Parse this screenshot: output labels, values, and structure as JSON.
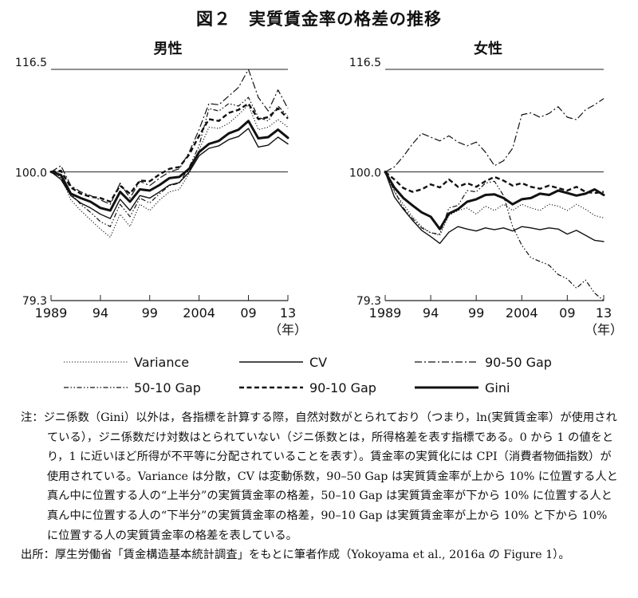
{
  "figure_title": "図２　実質賃金率の格差の推移",
  "year_unit": "（年）",
  "x_tick_labels": [
    "1989",
    "94",
    "99",
    "2004",
    "09",
    "13"
  ],
  "y_tick_labels": [
    "116.5",
    "100.0",
    "79.3"
  ],
  "legend": [
    {
      "label": "Variance",
      "style": "dotted"
    },
    {
      "label": "CV",
      "style": "solid"
    },
    {
      "label": "90-50 Gap",
      "style": "dashdot"
    },
    {
      "label": "50-10 Gap",
      "style": "dashdotdot"
    },
    {
      "label": "90-10 Gap",
      "style": "dashed"
    },
    {
      "label": "Gini",
      "style": "thick"
    }
  ],
  "chart_data": [
    {
      "type": "line",
      "title": "男性",
      "x": [
        1989,
        1990,
        1991,
        1992,
        1993,
        1994,
        1995,
        1996,
        1997,
        1998,
        1999,
        2000,
        2001,
        2002,
        2003,
        2004,
        2005,
        2006,
        2007,
        2008,
        2009,
        2010,
        2011,
        2012,
        2013
      ],
      "xlim": [
        1989,
        2013
      ],
      "ylim": [
        79.3,
        116.5
      ],
      "xticks": [
        1989,
        1994,
        1999,
        2004,
        2009,
        2013
      ],
      "yticks": [
        79.3,
        100.0,
        116.5
      ],
      "series": [
        {
          "name": "Variance",
          "values": [
            100.0,
            99.2,
            95.5,
            93.8,
            92.3,
            90.8,
            89.5,
            93.2,
            91.2,
            94.8,
            93.8,
            95.5,
            96.8,
            97.2,
            99.8,
            103.5,
            107.2,
            107.0,
            107.8,
            109.2,
            110.8,
            106.8,
            107.2,
            108.4,
            107.2
          ]
        },
        {
          "name": "CV",
          "values": [
            100.0,
            98.8,
            96.2,
            95.0,
            94.2,
            93.2,
            92.5,
            95.6,
            93.8,
            96.2,
            95.8,
            96.8,
            97.9,
            98.3,
            100.0,
            102.6,
            103.8,
            104.2,
            105.2,
            105.7,
            107.0,
            104.0,
            104.3,
            105.6,
            104.5
          ]
        },
        {
          "name": "90-50 Gap",
          "values": [
            100.0,
            101.0,
            97.8,
            96.8,
            96.2,
            95.5,
            94.8,
            98.2,
            95.8,
            98.5,
            97.8,
            99.0,
            100.0,
            100.5,
            103.2,
            106.8,
            111.0,
            110.8,
            112.2,
            113.6,
            116.5,
            112.0,
            109.8,
            113.2,
            110.2
          ]
        },
        {
          "name": "50-10 Gap",
          "values": [
            100.0,
            99.0,
            96.5,
            94.8,
            93.5,
            92.0,
            91.2,
            94.8,
            92.8,
            95.8,
            95.0,
            96.5,
            97.8,
            98.2,
            100.8,
            104.2,
            110.2,
            109.8,
            111.0,
            110.6,
            112.0,
            108.8,
            108.2,
            110.6,
            109.0
          ]
        },
        {
          "name": "90-10 Gap",
          "values": [
            100.0,
            100.2,
            97.5,
            96.5,
            96.0,
            95.8,
            95.2,
            97.8,
            96.5,
            98.6,
            98.5,
            99.6,
            100.5,
            100.8,
            102.8,
            105.8,
            108.5,
            108.2,
            109.5,
            110.0,
            111.0,
            108.5,
            108.8,
            110.2,
            108.6
          ]
        },
        {
          "name": "Gini",
          "values": [
            100.0,
            99.5,
            96.5,
            95.8,
            95.2,
            94.2,
            93.8,
            96.8,
            95.2,
            97.2,
            97.0,
            97.9,
            99.0,
            99.2,
            100.5,
            103.2,
            104.5,
            105.0,
            106.2,
            106.8,
            108.2,
            105.4,
            105.6,
            106.8,
            105.5
          ]
        }
      ]
    },
    {
      "type": "line",
      "title": "女性",
      "x": [
        1989,
        1990,
        1991,
        1992,
        1993,
        1994,
        1995,
        1996,
        1997,
        1998,
        1999,
        2000,
        2001,
        2002,
        2003,
        2004,
        2005,
        2006,
        2007,
        2008,
        2009,
        2010,
        2011,
        2012,
        2013
      ],
      "xlim": [
        1989,
        2013
      ],
      "ylim": [
        79.3,
        116.5
      ],
      "xticks": [
        1989,
        1994,
        1999,
        2004,
        2009,
        2013
      ],
      "yticks": [
        79.3,
        100.0,
        116.5
      ],
      "series": [
        {
          "name": "Variance",
          "values": [
            100.0,
            96.8,
            94.8,
            92.8,
            91.2,
            90.2,
            89.8,
            93.0,
            93.8,
            94.2,
            93.2,
            94.5,
            93.8,
            94.8,
            93.8,
            94.8,
            94.2,
            93.8,
            94.8,
            94.5,
            93.8,
            94.8,
            94.0,
            93.0,
            92.6
          ]
        },
        {
          "name": "CV",
          "values": [
            100.0,
            96.0,
            94.0,
            92.2,
            90.6,
            89.6,
            88.5,
            90.3,
            91.2,
            90.8,
            90.5,
            91.0,
            90.7,
            91.0,
            90.5,
            91.2,
            91.0,
            90.7,
            91.0,
            90.8,
            90.0,
            90.6,
            89.8,
            89.0,
            88.8
          ]
        },
        {
          "name": "90-50 Gap",
          "values": [
            100.0,
            100.8,
            102.5,
            104.5,
            106.2,
            105.6,
            105.0,
            105.8,
            104.8,
            104.2,
            104.8,
            103.2,
            101.0,
            101.8,
            103.8,
            109.2,
            109.5,
            108.8,
            109.4,
            110.5,
            108.8,
            108.4,
            110.0,
            110.8,
            111.8
          ]
        },
        {
          "name": "50-10 Gap",
          "values": [
            100.0,
            97.0,
            94.2,
            92.5,
            91.0,
            90.2,
            90.0,
            94.2,
            94.6,
            97.0,
            96.8,
            98.2,
            98.5,
            96.2,
            91.2,
            88.2,
            86.2,
            85.6,
            85.0,
            83.5,
            82.8,
            81.3,
            82.6,
            80.5,
            79.3
          ]
        },
        {
          "name": "90-10 Gap",
          "values": [
            100.0,
            98.8,
            97.4,
            96.8,
            97.2,
            98.0,
            97.5,
            98.8,
            97.6,
            98.2,
            97.6,
            98.5,
            99.2,
            98.6,
            97.8,
            98.2,
            97.6,
            97.3,
            97.8,
            97.4,
            97.0,
            97.6,
            96.8,
            96.6,
            96.8
          ]
        },
        {
          "name": "Gini",
          "values": [
            100.0,
            97.5,
            95.8,
            94.6,
            93.5,
            92.8,
            90.8,
            93.3,
            94.0,
            95.2,
            95.6,
            96.3,
            96.4,
            95.8,
            94.8,
            95.6,
            95.8,
            96.5,
            96.3,
            97.0,
            96.6,
            96.2,
            96.5,
            97.2,
            96.3
          ]
        }
      ]
    }
  ],
  "notes": {
    "note": "注：ジニ係数（Gini）以外は，各指標を計算する際，自然対数がとられており（つまり，ln(実質賃金率）が使用されている），ジニ係数だけ対数はとられていない（ジニ係数とは，所得格差を表す指標である。0 から 1 の値をとり，1 に近いほど所得が不平等に分配されていることを表す）。賃金率の実質化には CPI（消費者物価指数）が使用されている。Variance は分散，CV は変動係数，90–50 Gap は実質賃金率が上から 10% に位置する人と真ん中に位置する人の“上半分”の実質賃金率の格差，50–10 Gap は実質賃金率が下から 10% に位置する人と真ん中に位置する人の“下半分”の実質賃金率の格差，90–10 Gap は実質賃金率が上から 10% と下から 10% に位置する人の実質賃金率の格差を表している。",
    "source": "出所：厚生労働省「賃金構造基本統計調査」をもとに筆者作成（Yokoyama et al., 2016a の Figure 1）。"
  }
}
